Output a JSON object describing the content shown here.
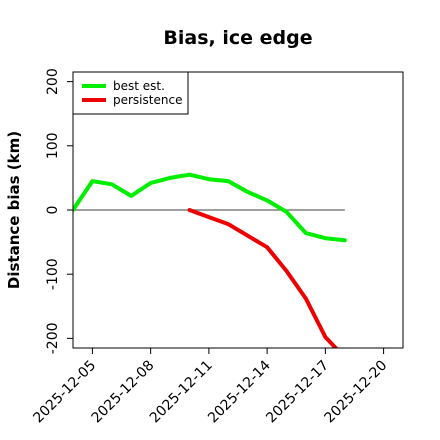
{
  "chart_data": {
    "type": "line",
    "title": "Bias, ice edge",
    "xlabel": "",
    "ylabel": "Distance bias (km)",
    "x_ticks": [
      "2025-12-05",
      "2025-12-08",
      "2025-12-11",
      "2025-12-14",
      "2025-12-17",
      "2025-12-20"
    ],
    "x_range": [
      "2025-12-04",
      "2025-12-21"
    ],
    "y_ticks": [
      -200,
      -100,
      0,
      100,
      200
    ],
    "ylim": [
      -215,
      215
    ],
    "zero_line": true,
    "grid": false,
    "legend_position": "top-left",
    "series": [
      {
        "name": "best est.",
        "color": "#00ee00",
        "x": [
          "2025-12-04",
          "2025-12-05",
          "2025-12-06",
          "2025-12-07",
          "2025-12-08",
          "2025-12-09",
          "2025-12-10",
          "2025-12-11",
          "2025-12-12",
          "2025-12-13",
          "2025-12-14",
          "2025-12-15",
          "2025-12-16",
          "2025-12-17",
          "2025-12-18"
        ],
        "y": [
          0,
          45,
          40,
          22,
          42,
          50,
          55,
          48,
          45,
          28,
          15,
          -3,
          -36,
          -44,
          -47
        ]
      },
      {
        "name": "persistence",
        "color": "#ee0000",
        "x": [
          "2025-12-10",
          "2025-12-11",
          "2025-12-12",
          "2025-12-13",
          "2025-12-14",
          "2025-12-15",
          "2025-12-16",
          "2025-12-17",
          "2025-12-18"
        ],
        "y": [
          0,
          -11,
          -22,
          -40,
          -58,
          -95,
          -138,
          -198,
          -230
        ]
      }
    ]
  }
}
